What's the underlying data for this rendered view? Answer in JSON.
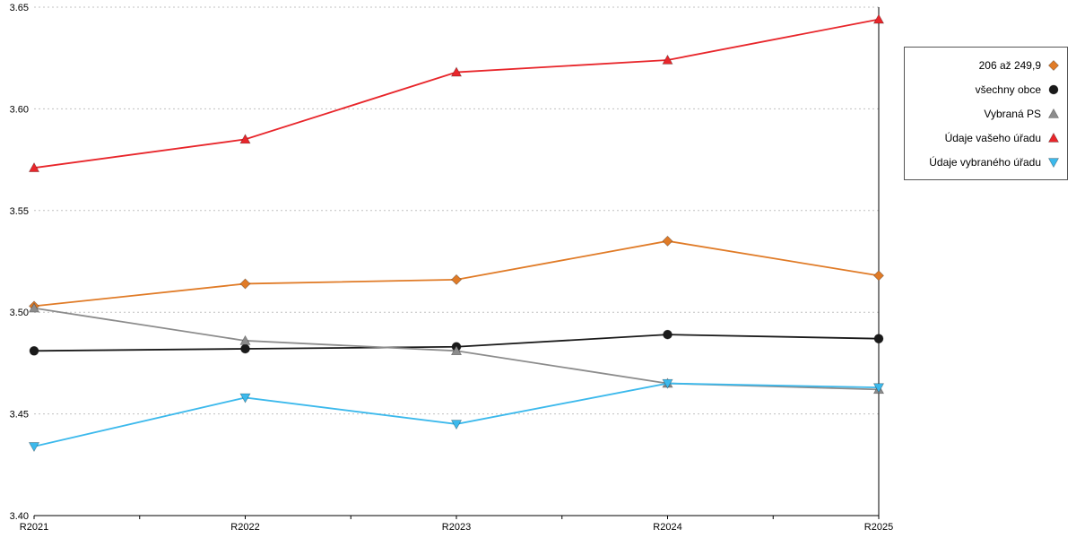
{
  "chart_data": {
    "type": "line",
    "title": "",
    "xlabel": "",
    "ylabel": "",
    "categories": [
      "R2021",
      "R2022",
      "R2023",
      "R2024",
      "R2025"
    ],
    "ylim": [
      3.4,
      3.65
    ],
    "ytick_step": 0.05,
    "grid": "horizontal-dotted",
    "legend_position": "right",
    "series": [
      {
        "name": "206 až 249,9",
        "marker": "diamond",
        "color": "#e07b27",
        "values": [
          3.503,
          3.514,
          3.516,
          3.535,
          3.518
        ]
      },
      {
        "name": "všechny obce",
        "marker": "circle",
        "color": "#1a1a1a",
        "values": [
          3.481,
          3.482,
          3.483,
          3.489,
          3.487
        ]
      },
      {
        "name": "Vybraná PS",
        "marker": "triangle-up",
        "color": "#8c8c8c",
        "values": [
          3.502,
          3.486,
          3.481,
          3.465,
          3.462
        ]
      },
      {
        "name": "Údaje vašeho úřadu",
        "marker": "triangle-up",
        "color": "#e8262b",
        "values": [
          3.571,
          3.585,
          3.618,
          3.624,
          3.644
        ]
      },
      {
        "name": "Údaje vybraného úřadu",
        "marker": "triangle-down",
        "color": "#3cb9ec",
        "values": [
          3.434,
          3.458,
          3.445,
          3.465,
          3.463
        ]
      }
    ]
  },
  "colors": {
    "gridline": "#c0c0c0",
    "axis": "#000000",
    "tick_label": "#000000",
    "legend_border": "#555555"
  }
}
